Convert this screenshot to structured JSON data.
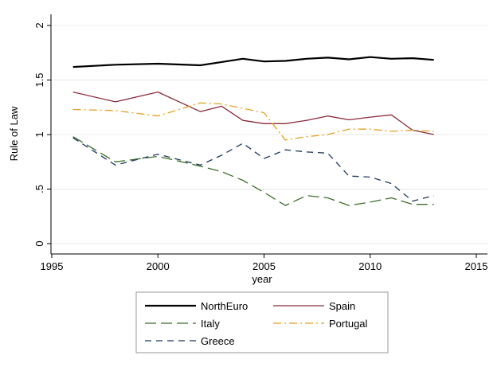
{
  "chart_data": {
    "type": "line",
    "title": "",
    "xlabel": "year",
    "ylabel": "Rule of Law",
    "xlim": [
      1995,
      2015
    ],
    "ylim": [
      0,
      2
    ],
    "xticks": [
      1995,
      2000,
      2005,
      2010,
      2015
    ],
    "xtick_labels": [
      "1995",
      "2000",
      "2005",
      "2010",
      "2015"
    ],
    "yticks": [
      0,
      0.5,
      1,
      1.5,
      2
    ],
    "ytick_labels": [
      "0",
      ".5",
      "1",
      "1.5",
      "2"
    ],
    "grid": "horizontal",
    "legend_position": "bottom",
    "series": [
      {
        "name": "NorthEuro",
        "color": "#000000",
        "dash": "solid",
        "x": [
          1996,
          1998,
          2000,
          2002,
          2003,
          2004,
          2005,
          2006,
          2007,
          2008,
          2009,
          2010,
          2011,
          2012,
          2013
        ],
        "y": [
          1.62,
          1.64,
          1.65,
          1.635,
          1.665,
          1.695,
          1.67,
          1.675,
          1.695,
          1.705,
          1.69,
          1.71,
          1.695,
          1.7,
          1.685
        ]
      },
      {
        "name": "Spain",
        "color": "#8b2c3a",
        "dash": "solid",
        "x": [
          1996,
          1998,
          2000,
          2002,
          2003,
          2004,
          2005,
          2006,
          2007,
          2008,
          2009,
          2010,
          2011,
          2012,
          2013
        ],
        "y": [
          1.39,
          1.3,
          1.39,
          1.21,
          1.26,
          1.13,
          1.1,
          1.1,
          1.13,
          1.17,
          1.135,
          1.16,
          1.18,
          1.04,
          1.0
        ]
      },
      {
        "name": "Italy",
        "color": "#3c6e2a",
        "dash": "long",
        "x": [
          1996,
          1998,
          2000,
          2002,
          2003,
          2004,
          2005,
          2006,
          2007,
          2008,
          2009,
          2010,
          2011,
          2012,
          2013
        ],
        "y": [
          0.98,
          0.75,
          0.8,
          0.71,
          0.66,
          0.58,
          0.47,
          0.35,
          0.44,
          0.42,
          0.35,
          0.38,
          0.42,
          0.36,
          0.36
        ]
      },
      {
        "name": "Portugal",
        "color": "#e8a020",
        "dash": "dashdot",
        "x": [
          1996,
          1998,
          2000,
          2002,
          2003,
          2004,
          2005,
          2006,
          2007,
          2008,
          2009,
          2010,
          2011,
          2012,
          2013
        ],
        "y": [
          1.23,
          1.22,
          1.17,
          1.29,
          1.28,
          1.24,
          1.2,
          0.95,
          0.98,
          1.0,
          1.05,
          1.05,
          1.03,
          1.04,
          1.03
        ]
      },
      {
        "name": "Greece",
        "color": "#1f3a5f",
        "dash": "short",
        "x": [
          1996,
          1998,
          2000,
          2002,
          2003,
          2004,
          2005,
          2006,
          2007,
          2008,
          2009,
          2010,
          2011,
          2012,
          2013
        ],
        "y": [
          0.97,
          0.72,
          0.82,
          0.72,
          0.81,
          0.92,
          0.78,
          0.86,
          0.84,
          0.83,
          0.62,
          0.61,
          0.55,
          0.39,
          0.44
        ]
      }
    ]
  }
}
